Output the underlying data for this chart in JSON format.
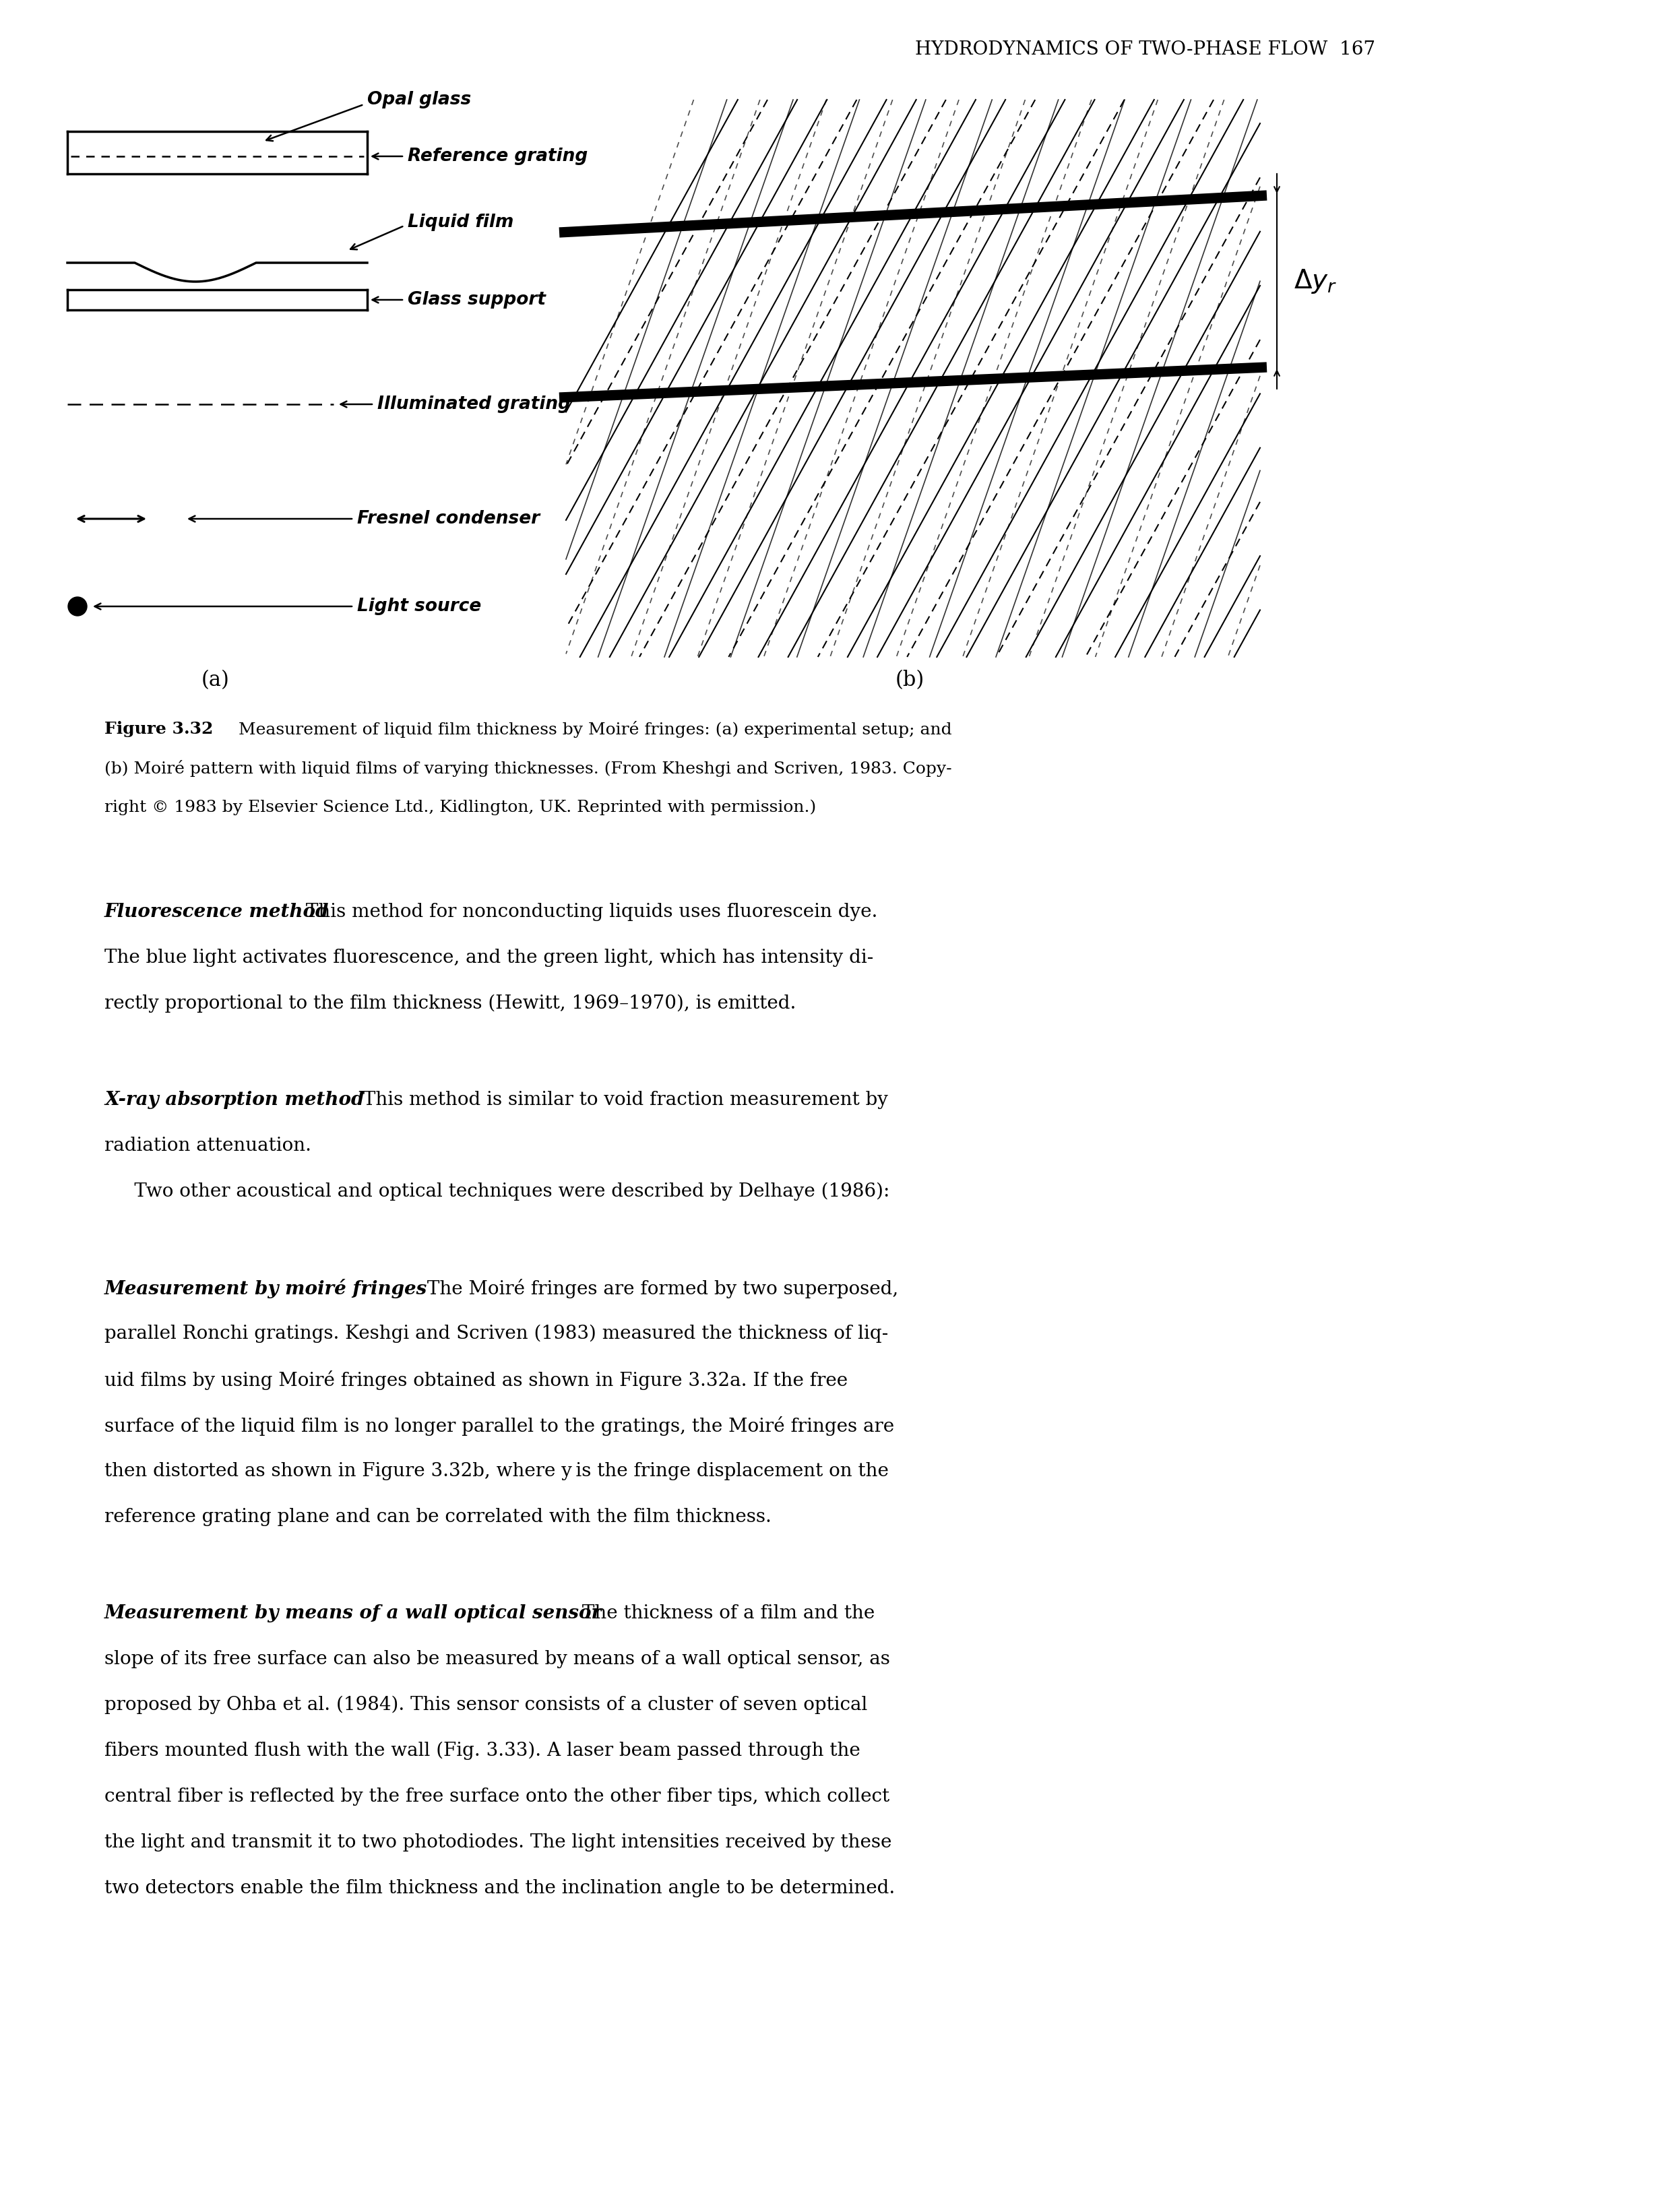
{
  "page_header": "HYDRODYNAMICS OF TWO-PHASE FLOW  167",
  "figure_caption_bold": "Figure 3.32",
  "figure_caption_line1_rest": "   Measurement of liquid film thickness by Moiré fringes: (a) experimental setup; and",
  "figure_caption_line2": "(b) Moiré pattern with liquid films of varying thicknesses. (From Kheshgi and Scriven, 1983. Copy-",
  "figure_caption_line3": "right © 1983 by Elsevier Science Ltd., Kidlington, UK. Reprinted with permission.)",
  "label_a": "(a)",
  "label_b": "(b)",
  "labels_left": [
    "Opal glass",
    "Reference grating",
    "Liquid film",
    "Glass support",
    "Illuminated grating",
    "Fresnel condenser",
    "Light source"
  ],
  "para1_bold": "Fluorescence method",
  "para1_line1_rest": " This method for nonconducting liquids uses fluorescein dye.",
  "para1_line2": "The blue light activates fluorescence, and the green light, which has intensity di-",
  "para1_line3": "rectly proportional to the film thickness (Hewitt, 1969–1970), is emitted.",
  "para2_bold": "X-ray absorption method",
  "para2_line1_rest": " This method is similar to void fraction measurement by",
  "para2_line2": "radiation attenuation.",
  "para2_line3": "     Two other acoustical and optical techniques were described by Delhaye (1986):",
  "para3_bold": "Measurement by moiré fringes",
  "para3_line1_rest": " The Moiré fringes are formed by two superposed,",
  "para3_lines": [
    "parallel Ronchi gratings. Keshgi and Scriven (1983) measured the thickness of liq-",
    "uid films by using Moiré fringes obtained as shown in Figure 3.32a. If the free",
    "surface of the liquid film is no longer parallel to the gratings, the Moiré fringes are",
    "then distorted as shown in Figure 3.32b, where y is the fringe displacement on the",
    "reference grating plane and can be correlated with the film thickness."
  ],
  "para4_bold": "Measurement by means of a wall optical sensor",
  "para4_line1_rest": " The thickness of a film and the",
  "para4_lines": [
    "slope of its free surface can also be measured by means of a wall optical sensor, as",
    "proposed by Ohba et al. (1984). This sensor consists of a cluster of seven optical",
    "fibers mounted flush with the wall (Fig. 3.33). A laser beam passed through the",
    "central fiber is reflected by the free surface onto the other fiber tips, which collect",
    "the light and transmit it to two photodiodes. The light intensities received by these",
    "two detectors enable the film thickness and the inclination angle to be determined."
  ],
  "bg_color": "#ffffff",
  "text_color": "#000000",
  "header_fontsize": 20,
  "caption_fontsize": 18,
  "body_fontsize": 20,
  "label_fontsize": 20,
  "diagram_fontsize": 19
}
